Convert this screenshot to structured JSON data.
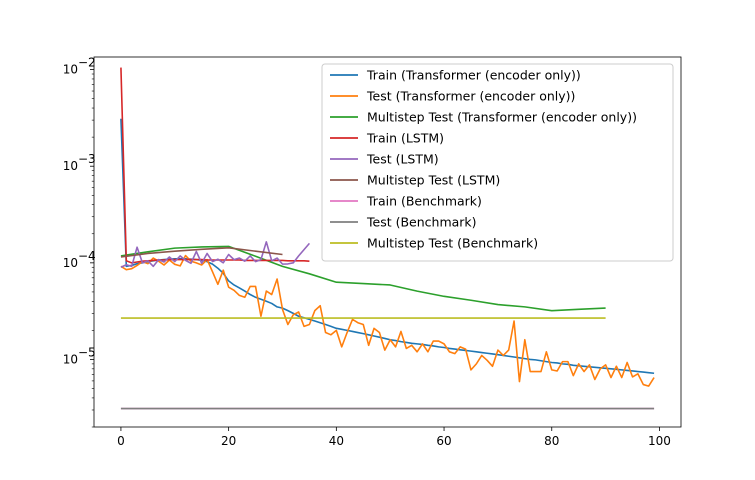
{
  "chart_data": {
    "type": "line",
    "title": "",
    "xlabel": "",
    "ylabel": "",
    "xlim": [
      -5,
      104
    ],
    "ylim": [
      2e-06,
      0.0135
    ],
    "yscale": "log",
    "grid": false,
    "legend_position": "top-right",
    "x_ticks": [
      0,
      20,
      40,
      60,
      80,
      100
    ],
    "x_tick_labels": [
      "0",
      "20",
      "40",
      "60",
      "80",
      "100"
    ],
    "y_ticks": [
      1e-05,
      0.0001,
      0.001,
      0.01
    ],
    "y_tick_labels": [
      {
        "base": "10",
        "exp": "−5"
      },
      {
        "base": "10",
        "exp": "−4"
      },
      {
        "base": "10",
        "exp": "−3"
      },
      {
        "base": "10",
        "exp": "−2"
      }
    ],
    "series": [
      {
        "name": "Train (Transformer (encoder only))",
        "color": "#1f77b4",
        "x": [
          0,
          1,
          2,
          3,
          4,
          5,
          6,
          7,
          8,
          9,
          10,
          11,
          12,
          13,
          14,
          15,
          16,
          17,
          18,
          19,
          20,
          21,
          22,
          23,
          24,
          25,
          26,
          27,
          28,
          29,
          30,
          31,
          32,
          33,
          34,
          35,
          36,
          37,
          38,
          39,
          40,
          41,
          42,
          43,
          44,
          45,
          46,
          47,
          48,
          49,
          50,
          51,
          52,
          53,
          54,
          55,
          56,
          57,
          58,
          59,
          60,
          61,
          62,
          63,
          64,
          65,
          66,
          67,
          68,
          69,
          70,
          71,
          72,
          73,
          74,
          75,
          76,
          77,
          78,
          79,
          80,
          81,
          82,
          83,
          84,
          85,
          86,
          87,
          88,
          89,
          90,
          91,
          92,
          93,
          94,
          95,
          96,
          97,
          98,
          99
        ],
        "y": [
          0.0031,
          9.2e-05,
          9.4e-05,
          9.8e-05,
          0.0001,
          0.000103,
          0.000105,
          0.000107,
          0.000108,
          0.000109,
          0.00011,
          0.00011,
          0.00011,
          0.000109,
          0.000108,
          0.000106,
          0.000103,
          9.7e-05,
          8.8e-05,
          7.8e-05,
          6.5e-05,
          5.9e-05,
          5.5e-05,
          5.1e-05,
          4.7e-05,
          4.4e-05,
          4.2e-05,
          4e-05,
          3.8e-05,
          3.5e-05,
          3.4e-05,
          3.2e-05,
          3e-05,
          2.8e-05,
          2.7e-05,
          2.6e-05,
          2.5e-05,
          2.4e-05,
          2.3e-05,
          2.2e-05,
          2.1e-05,
          2.05e-05,
          2e-05,
          1.95e-05,
          1.9e-05,
          1.85e-05,
          1.8e-05,
          1.75e-05,
          1.7e-05,
          1.65e-05,
          1.6e-05,
          1.57e-05,
          1.53e-05,
          1.5e-05,
          1.47e-05,
          1.45e-05,
          1.43e-05,
          1.4e-05,
          1.38e-05,
          1.35e-05,
          1.33e-05,
          1.3e-05,
          1.28e-05,
          1.26e-05,
          1.24e-05,
          1.22e-05,
          1.2e-05,
          1.18e-05,
          1.16e-05,
          1.14e-05,
          1.12e-05,
          1.1e-05,
          1.08e-05,
          1.06e-05,
          1.04e-05,
          1.02e-05,
          1e-05,
          9.9e-06,
          9.7e-06,
          9.5e-06,
          9.3e-06,
          9.2e-06,
          9e-06,
          8.9e-06,
          8.7e-06,
          8.6e-06,
          8.5e-06,
          8.4e-06,
          8.3e-06,
          8.2e-06,
          8.1e-06,
          8e-06,
          7.9e-06,
          7.8e-06,
          7.7e-06,
          7.6e-06,
          7.5e-06,
          7.4e-06,
          7.3e-06,
          7.2e-06
        ]
      },
      {
        "name": "Test (Transformer (encoder only))",
        "color": "#ff7f0e",
        "x": [
          0,
          1,
          2,
          3,
          4,
          5,
          6,
          7,
          8,
          9,
          10,
          11,
          12,
          13,
          14,
          15,
          16,
          17,
          18,
          19,
          20,
          21,
          22,
          23,
          24,
          25,
          26,
          27,
          28,
          29,
          30,
          31,
          32,
          33,
          34,
          35,
          36,
          37,
          38,
          39,
          40,
          41,
          42,
          43,
          44,
          45,
          46,
          47,
          48,
          49,
          50,
          51,
          52,
          53,
          54,
          55,
          56,
          57,
          58,
          59,
          60,
          61,
          62,
          63,
          64,
          65,
          66,
          67,
          68,
          69,
          70,
          71,
          72,
          73,
          74,
          75,
          76,
          77,
          78,
          79,
          80,
          81,
          82,
          83,
          84,
          85,
          86,
          87,
          88,
          89,
          90,
          91,
          92,
          93,
          94,
          95,
          96,
          97,
          98,
          99
        ],
        "y": [
          9.2e-05,
          8.5e-05,
          8.7e-05,
          9.4e-05,
          0.000103,
          9.8e-05,
          0.000112,
          0.000104,
          9.5e-05,
          0.000107,
          9.65e-05,
          9.3e-05,
          0.000119,
          0.000104,
          0.0001,
          9.5e-05,
          0.000108,
          8.1e-05,
          6e-05,
          8.4e-05,
          5.6e-05,
          5.2e-05,
          4.6e-05,
          4.4e-05,
          5.7e-05,
          5.7e-05,
          2.8e-05,
          5.1e-05,
          4.7e-05,
          6.8e-05,
          3.3e-05,
          2.3e-05,
          2.9e-05,
          3.1e-05,
          2.2e-05,
          2.3e-05,
          3.2e-05,
          3.6e-05,
          1.9e-05,
          1.8e-05,
          2e-05,
          1.35e-05,
          1.9e-05,
          2.6e-05,
          2.4e-05,
          2.3e-05,
          1.4e-05,
          2.1e-05,
          1.9e-05,
          1.25e-05,
          1.6e-05,
          1.35e-05,
          1.95e-05,
          1.3e-05,
          1.4e-05,
          1.2e-05,
          1.45e-05,
          1.2e-05,
          1.55e-05,
          1.55e-05,
          1.45e-05,
          1.2e-05,
          1.15e-05,
          1.35e-05,
          1.28e-05,
          7.8e-06,
          9e-06,
          1.1e-05,
          9.8e-06,
          8.5e-06,
          1.25e-05,
          1.1e-05,
          1.25e-05,
          2.5e-05,
          5.9e-06,
          1.6e-05,
          7.5e-06,
          7.5e-06,
          7.5e-06,
          1.2e-05,
          7.8e-06,
          7.6e-06,
          9.5e-06,
          9.5e-06,
          6.8e-06,
          9e-06,
          7.5e-06,
          8.8e-06,
          6.2e-06,
          8e-06,
          8.8e-06,
          6.5e-06,
          8.5e-06,
          6.5e-06,
          9.3e-06,
          6.6e-06,
          7.1e-06,
          5.5e-06,
          5.3e-06,
          6.5e-06
        ]
      },
      {
        "name": "Multistep Test (Transformer (encoder only))",
        "color": "#2ca02c",
        "x": [
          0,
          5,
          10,
          15,
          20,
          25,
          30,
          35,
          40,
          45,
          50,
          55,
          60,
          65,
          70,
          75,
          80,
          85,
          90
        ],
        "y": [
          0.000118,
          0.00013,
          0.000142,
          0.000146,
          0.000148,
          0.000117,
          9.2e-05,
          7.7e-05,
          6.3e-05,
          6.1e-05,
          5.9e-05,
          5.1e-05,
          4.5e-05,
          4.1e-05,
          3.7e-05,
          3.5e-05,
          3.2e-05,
          3.3e-05,
          3.4e-05
        ]
      },
      {
        "name": "Train (LSTM)",
        "color": "#d62728",
        "x": [
          0,
          1,
          2,
          3,
          4,
          5,
          6,
          7,
          8,
          9,
          10,
          11,
          12,
          13,
          14,
          15,
          16,
          17,
          18,
          19,
          20,
          21,
          22,
          23,
          24,
          25,
          26,
          27,
          28,
          29,
          30,
          31,
          32,
          33,
          34,
          35
        ],
        "y": [
          0.0105,
          0.000105,
          0.0001,
          0.000102,
          0.000104,
          0.000105,
          0.000106,
          0.000107,
          0.000107,
          0.000108,
          0.000108,
          0.000108,
          0.000108,
          0.000108,
          0.000108,
          0.000108,
          0.000107,
          0.000107,
          0.000107,
          0.000107,
          0.000107,
          0.000107,
          0.000107,
          0.000106,
          0.000106,
          0.000106,
          0.000106,
          0.000106,
          0.000106,
          0.000106,
          0.000106,
          0.000105,
          0.000105,
          0.000105,
          0.000105,
          0.000104
        ]
      },
      {
        "name": "Test (LSTM)",
        "color": "#9467bd",
        "x": [
          0,
          1,
          2,
          3,
          4,
          5,
          6,
          7,
          8,
          9,
          10,
          11,
          12,
          13,
          14,
          15,
          16,
          17,
          18,
          19,
          20,
          21,
          22,
          23,
          24,
          25,
          26,
          27,
          28,
          29,
          30,
          31,
          32,
          33,
          34,
          35
        ],
        "y": [
          9e-05,
          9.55e-05,
          9.2e-05,
          0.000145,
          0.0001,
          0.000105,
          9.2e-05,
          0.000108,
          0.000102,
          0.000115,
          0.000103,
          0.000118,
          0.000106,
          9.9e-05,
          0.000131,
          9.9e-05,
          0.000125,
          0.000103,
          0.000109,
          0.0001,
          0.000122,
          0.000108,
          0.000112,
          0.000104,
          0.000118,
          0.000103,
          0.000108,
          0.000165,
          0.000105,
          0.000112,
          9.7e-05,
          9.75e-05,
          0.0001,
          0.000118,
          0.000137,
          0.000159
        ]
      },
      {
        "name": "Multistep Test (LSTM)",
        "color": "#8c564b",
        "x": [
          0,
          5,
          10,
          15,
          20,
          25,
          30
        ],
        "y": [
          0.000115,
          0.000125,
          0.000132,
          0.000138,
          0.000143,
          0.000132,
          0.000122
        ]
      },
      {
        "name": "Train (Benchmark)",
        "color": "#e377c2",
        "x": [
          0,
          99
        ],
        "y": [
          3.1e-06,
          3.1e-06
        ]
      },
      {
        "name": "Test (Benchmark)",
        "color": "#7f7f7f",
        "x": [
          0,
          99
        ],
        "y": [
          3.1e-06,
          3.1e-06
        ]
      },
      {
        "name": "Multistep Test (Benchmark)",
        "color": "#bcbd22",
        "x": [
          0,
          90
        ],
        "y": [
          2.68e-05,
          2.68e-05
        ]
      }
    ]
  }
}
